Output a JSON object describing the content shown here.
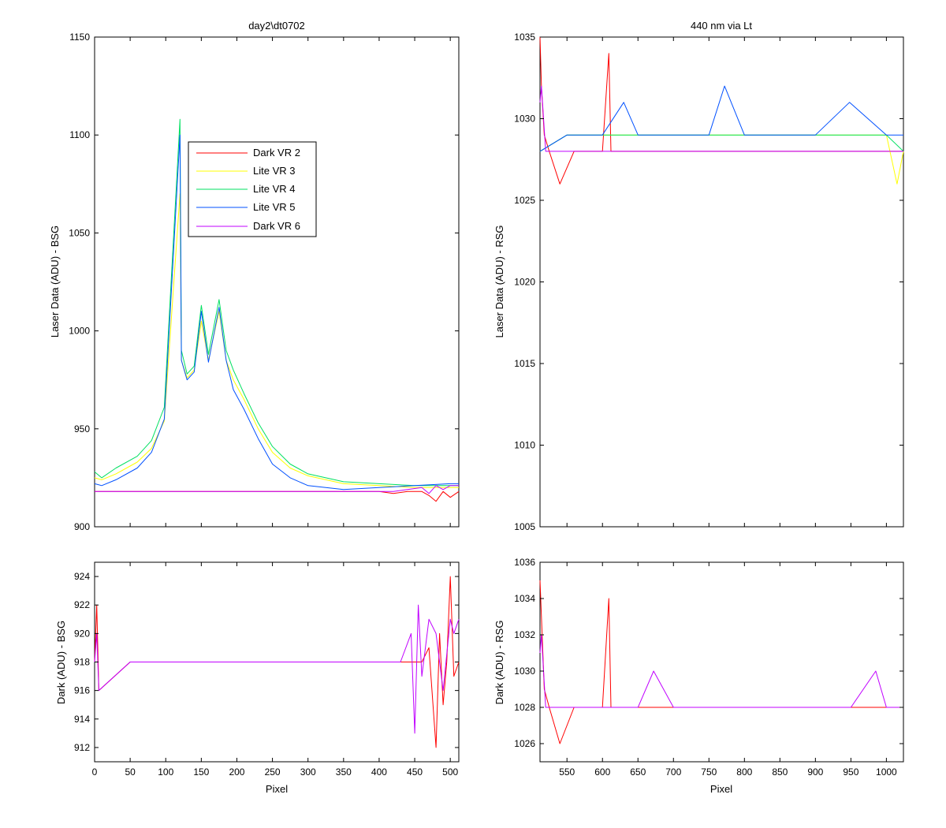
{
  "chart_data": [
    {
      "id": "top-left",
      "type": "line",
      "title": "day2\\dt0702",
      "xlabel": "",
      "ylabel": "Laser Data (ADU) - BSG",
      "xlim": [
        0,
        512
      ],
      "ylim": [
        900,
        1150
      ],
      "xticks": [
        0,
        50,
        100,
        150,
        200,
        250,
        300,
        350,
        400,
        450,
        500
      ],
      "xticklabels_visible": false,
      "yticks": [
        900,
        950,
        1000,
        1050,
        1100,
        1150
      ],
      "grid": false,
      "legend": {
        "placement": "upper-left-inside",
        "entries": [
          "Dark VR 2",
          "Lite VR 3",
          "Lite VR 4",
          "Lite VR 5",
          "Dark VR 6"
        ]
      },
      "series": [
        {
          "name": "Dark VR 2",
          "color": "#ff0000",
          "x": [
            0,
            50,
            100,
            150,
            200,
            250,
            300,
            350,
            400,
            420,
            440,
            460,
            470,
            480,
            490,
            500,
            512
          ],
          "y": [
            918,
            918,
            918,
            918,
            918,
            918,
            918,
            918,
            918,
            917,
            918,
            918,
            916,
            913,
            918,
            915,
            918
          ]
        },
        {
          "name": "Lite VR 3",
          "color": "#ffff00",
          "x": [
            0,
            10,
            30,
            60,
            80,
            98,
            120,
            122,
            130,
            140,
            150,
            160,
            175,
            185,
            195,
            210,
            230,
            250,
            275,
            300,
            350,
            400,
            450,
            500,
            512
          ],
          "y": [
            925,
            924,
            927,
            933,
            940,
            954,
            1070,
            985,
            976,
            980,
            1005,
            985,
            1010,
            985,
            975,
            965,
            950,
            938,
            930,
            926,
            922,
            921,
            920,
            920,
            920
          ]
        },
        {
          "name": "Lite VR 4",
          "color": "#00e060",
          "x": [
            0,
            10,
            30,
            60,
            80,
            98,
            120,
            122,
            130,
            140,
            150,
            160,
            175,
            185,
            195,
            210,
            230,
            250,
            275,
            300,
            350,
            400,
            450,
            500,
            512
          ],
          "y": [
            928,
            925,
            930,
            936,
            944,
            961,
            1108,
            990,
            978,
            982,
            1013,
            988,
            1016,
            990,
            980,
            968,
            953,
            941,
            932,
            927,
            923,
            922,
            921,
            921,
            921
          ]
        },
        {
          "name": "Lite VR 5",
          "color": "#0050ff",
          "x": [
            0,
            10,
            30,
            60,
            80,
            98,
            120,
            122,
            130,
            140,
            150,
            160,
            175,
            185,
            195,
            210,
            230,
            250,
            275,
            300,
            350,
            400,
            450,
            500,
            512
          ],
          "y": [
            922,
            921,
            924,
            930,
            938,
            955,
            1100,
            985,
            975,
            979,
            1010,
            984,
            1012,
            985,
            970,
            960,
            945,
            932,
            925,
            921,
            919,
            920,
            921,
            922,
            922
          ]
        },
        {
          "name": "Dark VR 6",
          "color": "#c000ff",
          "x": [
            0,
            50,
            100,
            150,
            200,
            250,
            300,
            350,
            400,
            420,
            440,
            460,
            470,
            480,
            490,
            500,
            512
          ],
          "y": [
            918,
            918,
            918,
            918,
            918,
            918,
            918,
            918,
            918,
            918,
            919,
            920,
            917,
            921,
            919,
            921,
            921
          ]
        }
      ]
    },
    {
      "id": "top-right",
      "type": "line",
      "title": "440 nm via Lt",
      "xlabel": "",
      "ylabel": "Laser Data (ADU) - RSG",
      "xlim": [
        512,
        1024
      ],
      "ylim": [
        1005,
        1035
      ],
      "xticks": [
        550,
        600,
        650,
        700,
        750,
        800,
        850,
        900,
        950,
        1000
      ],
      "xticklabels_visible": false,
      "yticks": [
        1005,
        1010,
        1015,
        1020,
        1025,
        1030,
        1035
      ],
      "grid": false,
      "series": [
        {
          "name": "Dark VR 2",
          "color": "#ff0000",
          "x": [
            512,
            514,
            518,
            525,
            540,
            560,
            600,
            609,
            612,
            650,
            700,
            750,
            800,
            850,
            900,
            950,
            1000,
            1024
          ],
          "y": [
            1035,
            1032,
            1029,
            1028,
            1026,
            1028,
            1028,
            1034,
            1028,
            1028,
            1028,
            1028,
            1028,
            1028,
            1028,
            1028,
            1028,
            1028
          ]
        },
        {
          "name": "Lite VR 3",
          "color": "#ffff00",
          "x": [
            512,
            550,
            600,
            650,
            700,
            750,
            800,
            850,
            900,
            950,
            1000,
            1015,
            1024
          ],
          "y": [
            1028,
            1029,
            1029,
            1029,
            1029,
            1029,
            1029,
            1029,
            1029,
            1029,
            1029,
            1026,
            1028
          ]
        },
        {
          "name": "Lite VR 4",
          "color": "#00e060",
          "x": [
            512,
            550,
            600,
            650,
            700,
            750,
            800,
            850,
            900,
            950,
            1000,
            1024
          ],
          "y": [
            1028,
            1029,
            1029,
            1029,
            1029,
            1029,
            1029,
            1029,
            1029,
            1029,
            1029,
            1028
          ]
        },
        {
          "name": "Lite VR 5",
          "color": "#0050ff",
          "x": [
            512,
            550,
            600,
            630,
            650,
            700,
            750,
            772,
            800,
            850,
            900,
            948,
            1000,
            1024
          ],
          "y": [
            1028,
            1029,
            1029,
            1031,
            1029,
            1029,
            1029,
            1032,
            1029,
            1029,
            1029,
            1031,
            1029,
            1029
          ]
        },
        {
          "name": "Dark VR 6",
          "color": "#c000ff",
          "x": [
            512,
            514,
            520,
            550,
            600,
            650,
            700,
            750,
            800,
            850,
            900,
            950,
            1000,
            1024
          ],
          "y": [
            1031,
            1032,
            1028,
            1028,
            1028,
            1028,
            1028,
            1028,
            1028,
            1028,
            1028,
            1028,
            1028,
            1028
          ]
        }
      ]
    },
    {
      "id": "bottom-left",
      "type": "line",
      "title": "",
      "xlabel": "Pixel",
      "ylabel": "Dark (ADU) - BSG",
      "xlim": [
        0,
        512
      ],
      "ylim": [
        911,
        925
      ],
      "xticks": [
        0,
        50,
        100,
        150,
        200,
        250,
        300,
        350,
        400,
        450,
        500
      ],
      "yticks": [
        912,
        914,
        916,
        918,
        920,
        922,
        924
      ],
      "grid": false,
      "series": [
        {
          "name": "Dark VR 2",
          "color": "#ff0000",
          "x": [
            0,
            3,
            6,
            50,
            100,
            150,
            200,
            250,
            300,
            350,
            400,
            430,
            450,
            460,
            470,
            480,
            485,
            490,
            495,
            500,
            505,
            512
          ],
          "y": [
            918,
            922,
            916,
            918,
            918,
            918,
            918,
            918,
            918,
            918,
            918,
            918,
            918,
            918,
            919,
            912,
            920,
            915,
            918,
            924,
            917,
            918
          ]
        },
        {
          "name": "Dark VR 6",
          "color": "#c000ff",
          "x": [
            0,
            3,
            6,
            50,
            100,
            150,
            200,
            250,
            300,
            350,
            400,
            430,
            445,
            450,
            455,
            460,
            470,
            480,
            490,
            500,
            505,
            512
          ],
          "y": [
            918,
            920,
            916,
            918,
            918,
            918,
            918,
            918,
            918,
            918,
            918,
            918,
            920,
            913,
            922,
            917,
            921,
            920,
            916,
            921,
            920,
            921
          ]
        }
      ]
    },
    {
      "id": "bottom-right",
      "type": "line",
      "title": "",
      "xlabel": "Pixel",
      "ylabel": "Dark (ADU) - RSG",
      "xlim": [
        512,
        1024
      ],
      "ylim": [
        1025,
        1036
      ],
      "xticks": [
        550,
        600,
        650,
        700,
        750,
        800,
        850,
        900,
        950,
        1000
      ],
      "yticks": [
        1026,
        1028,
        1030,
        1032,
        1034,
        1036
      ],
      "grid": false,
      "series": [
        {
          "name": "Dark VR 2",
          "color": "#ff0000",
          "x": [
            512,
            514,
            518,
            525,
            540,
            560,
            600,
            609,
            612,
            650,
            700,
            750,
            800,
            850,
            900,
            950,
            1000,
            1024
          ],
          "y": [
            1035,
            1033,
            1029,
            1028,
            1026,
            1028,
            1028,
            1034,
            1028,
            1028,
            1028,
            1028,
            1028,
            1028,
            1028,
            1028,
            1028,
            1028
          ]
        },
        {
          "name": "Dark VR 6",
          "color": "#c000ff",
          "x": [
            512,
            514,
            520,
            560,
            600,
            650,
            672,
            700,
            750,
            800,
            850,
            900,
            950,
            985,
            1000,
            1024
          ],
          "y": [
            1031,
            1032,
            1028,
            1028,
            1028,
            1028,
            1030,
            1028,
            1028,
            1028,
            1028,
            1028,
            1028,
            1030,
            1028,
            1028
          ]
        }
      ]
    }
  ]
}
